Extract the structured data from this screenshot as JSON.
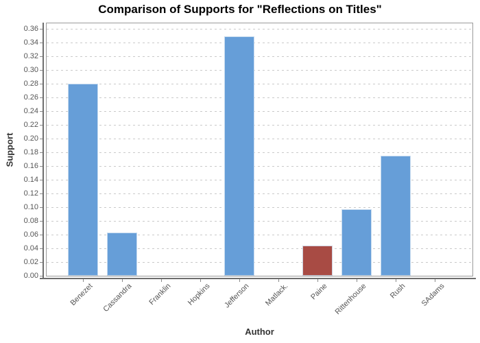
{
  "chart_data": {
    "type": "bar",
    "title": "Comparison of Supports for \"Reflections on Titles\"",
    "xlabel": "Author",
    "ylabel": "Support",
    "categories": [
      "Benezet",
      "Cassandra",
      "Franklin",
      "Hopkins",
      "Jefferson",
      "Matlack.",
      "Paine",
      "Rittenhouse",
      "Rush",
      "SAdams"
    ],
    "values": [
      0.28,
      0.063,
      0.0,
      0.0,
      0.349,
      0.0,
      0.044,
      0.097,
      0.175,
      0.0
    ],
    "bar_colors": [
      "#669ed8",
      "#669ed8",
      "#669ed8",
      "#669ed8",
      "#669ed8",
      "#669ed8",
      "#a84b44",
      "#669ed8",
      "#669ed8",
      "#669ed8"
    ],
    "colors": {
      "default_bar": "#669ed8",
      "highlight_bar": "#a84b44",
      "highlight_category": "Paine",
      "gridline": "#c9c9c9",
      "axis": "#6e6e6e",
      "tick_text": "#555555",
      "title_text": "#000000"
    },
    "ylim": [
      0,
      0.369
    ],
    "ytick_step": 0.02,
    "ytick_labels": [
      "0.00",
      "0.02",
      "0.04",
      "0.06",
      "0.08",
      "0.10",
      "0.12",
      "0.14",
      "0.16",
      "0.18",
      "0.20",
      "0.22",
      "0.24",
      "0.26",
      "0.28",
      "0.30",
      "0.32",
      "0.34",
      "0.36"
    ],
    "grid": {
      "horizontal": true,
      "style": "dashed"
    },
    "legend": "none"
  }
}
